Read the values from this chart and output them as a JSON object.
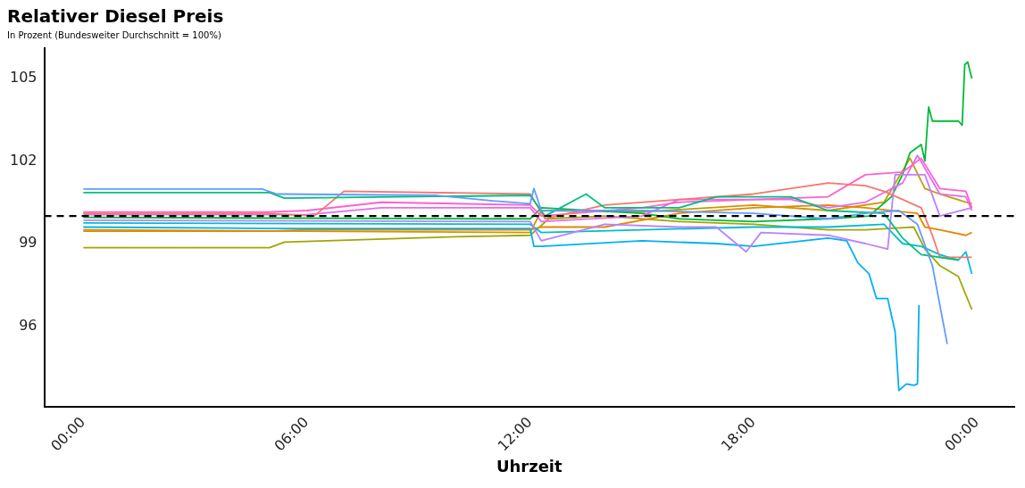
{
  "chart_data": {
    "type": "line",
    "title": "Relativer Diesel Preis",
    "subtitle": "In Prozent (Bundesweiter Durchschnitt = 100%)",
    "xlabel": "Uhrzeit",
    "xlim": [
      -1.05,
      25
    ],
    "xticks": [
      {
        "value": 0,
        "label": "00:00"
      },
      {
        "value": 6,
        "label": "06:00"
      },
      {
        "value": 12,
        "label": "12:00"
      },
      {
        "value": 18,
        "label": "18:00"
      },
      {
        "value": 24,
        "label": "00:00"
      }
    ],
    "ylim": [
      93.06,
      106.1
    ],
    "yticks": [
      96,
      99,
      102,
      105
    ],
    "grid": false,
    "legend": false,
    "marker": "none",
    "line_style": "solid",
    "ref_lines": [
      {
        "axis": "y",
        "value": 100,
        "color": "#000000",
        "line_style": "dashed"
      }
    ],
    "series": [
      {
        "color": "#619CFF",
        "x": [
          0,
          4.8,
          5.2,
          9.5,
          11,
          12,
          12.1,
          12.3,
          15,
          18,
          20,
          21,
          21.9,
          22.4,
          22.8,
          23.2
        ],
        "values": [
          100.98,
          100.98,
          100.8,
          100.75,
          100.55,
          100.45,
          101,
          100.2,
          100.2,
          100.1,
          99.9,
          100.1,
          100.2,
          99.7,
          98.2,
          95.35
        ]
      },
      {
        "color": "#00BF7D",
        "x": [
          0,
          5,
          5.4,
          12,
          12.4,
          13.5,
          14,
          16,
          17,
          19,
          20,
          21.5,
          22,
          22.5,
          23.5
        ],
        "values": [
          100.85,
          100.85,
          100.65,
          100.75,
          100,
          100.8,
          100.3,
          100.3,
          100.7,
          100.7,
          100.2,
          100.1,
          99.2,
          98.6,
          98.4
        ]
      },
      {
        "color": "#F8766D",
        "x": [
          0,
          5,
          6.2,
          7,
          12,
          12.4,
          14,
          16,
          18,
          20,
          21,
          21.5,
          22.5,
          22.8,
          23,
          23.86
        ],
        "values": [
          100.1,
          100.1,
          100,
          100.9,
          100.8,
          99.9,
          100.4,
          100.6,
          100.8,
          101.2,
          101.1,
          100.9,
          100.3,
          99.3,
          98.5,
          98.5
        ]
      },
      {
        "color": "#FD61D1",
        "x": [
          0,
          5,
          6,
          8,
          12,
          12.3,
          15,
          16,
          20,
          21,
          22,
          22.5,
          23,
          23.7,
          23.86
        ],
        "values": [
          100.15,
          100.15,
          100.2,
          100.5,
          100.4,
          100,
          100.3,
          100.5,
          100.7,
          101.5,
          101.6,
          102.1,
          101,
          100.9,
          100.3
        ]
      },
      {
        "color": "#E76BF3",
        "x": [
          0,
          6,
          8,
          12,
          12.3,
          15,
          16,
          19,
          20,
          21,
          22,
          22.4,
          23,
          23.7,
          23.86
        ],
        "values": [
          100.05,
          100.05,
          100.3,
          100.3,
          99.8,
          100,
          100.6,
          100.6,
          100.3,
          100.5,
          101.2,
          102.2,
          100.8,
          100.7,
          100.2
        ]
      },
      {
        "color": "#B983FF",
        "x": [
          0,
          12,
          12.3,
          14,
          16,
          17,
          17.8,
          18.2,
          20,
          21,
          21.6,
          21.8,
          22.6,
          23,
          23.86
        ],
        "values": [
          99.85,
          99.8,
          99.1,
          99.7,
          99.6,
          99.6,
          98.7,
          99.4,
          99.3,
          99,
          98.8,
          101.5,
          101.5,
          100,
          100.3
        ]
      },
      {
        "color": "#00BA38",
        "x": [
          0,
          11,
          12,
          12.3,
          15,
          16,
          18,
          20,
          21.1,
          21.7,
          22,
          22.2,
          22.5,
          22.6,
          22.7,
          22.8,
          23.5,
          23.6,
          23.67,
          23.75,
          23.86
        ],
        "values": [
          99.95,
          99.9,
          99.9,
          100.3,
          100.1,
          99.9,
          99.8,
          99.9,
          100,
          100.7,
          101.5,
          102.3,
          102.6,
          102,
          103.96,
          103.45,
          103.45,
          103.3,
          105.5,
          105.6,
          105
        ]
      },
      {
        "color": "#00B0F6",
        "x": [
          0,
          5,
          12,
          12.1,
          12.3,
          15,
          17,
          18,
          20,
          20.5,
          20.8,
          21.1,
          21.3,
          21.6,
          21.8,
          21.9,
          22.1,
          22.3,
          22.4,
          22.44
        ],
        "values": [
          99.6,
          99.55,
          99.55,
          98.9,
          98.9,
          99.1,
          99,
          98.9,
          99.2,
          99.1,
          98.3,
          97.9,
          97,
          97,
          95.8,
          93.66,
          93.9,
          93.85,
          93.9,
          96.76
        ]
      },
      {
        "color": "#00BCD8",
        "x": [
          0,
          12,
          12.3,
          15,
          18,
          20,
          21.5,
          22,
          22.5,
          23,
          23.5,
          23.7,
          23.86
        ],
        "values": [
          99.75,
          99.7,
          99.4,
          99.5,
          99.6,
          99.6,
          99.7,
          99,
          98.9,
          98.6,
          98.4,
          98.7,
          97.9
        ]
      },
      {
        "color": "#E58700",
        "x": [
          0,
          5,
          6,
          12,
          12.3,
          14,
          16,
          18,
          20,
          21,
          22.4,
          22.6,
          23,
          23.7,
          23.86
        ],
        "values": [
          99.45,
          99.45,
          99.5,
          99.5,
          99.6,
          99.6,
          100.1,
          100.3,
          100.4,
          100.3,
          100.1,
          99.6,
          99.5,
          99.3,
          99.4
        ]
      },
      {
        "color": "#C99800",
        "x": [
          0,
          12,
          12.3,
          15,
          18,
          20,
          21.5,
          22.2,
          22.6,
          23,
          23.7,
          23.86
        ],
        "values": [
          99.5,
          99.4,
          100.2,
          100.15,
          100.4,
          100.2,
          100.5,
          102.1,
          101,
          100.8,
          100.5,
          100.45
        ]
      },
      {
        "color": "#A3A500",
        "x": [
          0,
          5,
          5.4,
          10,
          12,
          12.5,
          14,
          16,
          18,
          20,
          21,
          22.3,
          22.6,
          23,
          23.5,
          23.86
        ],
        "values": [
          98.85,
          98.85,
          99.05,
          99.25,
          99.3,
          99.9,
          100,
          99.8,
          99.7,
          99.5,
          99.5,
          99.6,
          98.8,
          98.2,
          97.8,
          96.6
        ]
      }
    ]
  }
}
